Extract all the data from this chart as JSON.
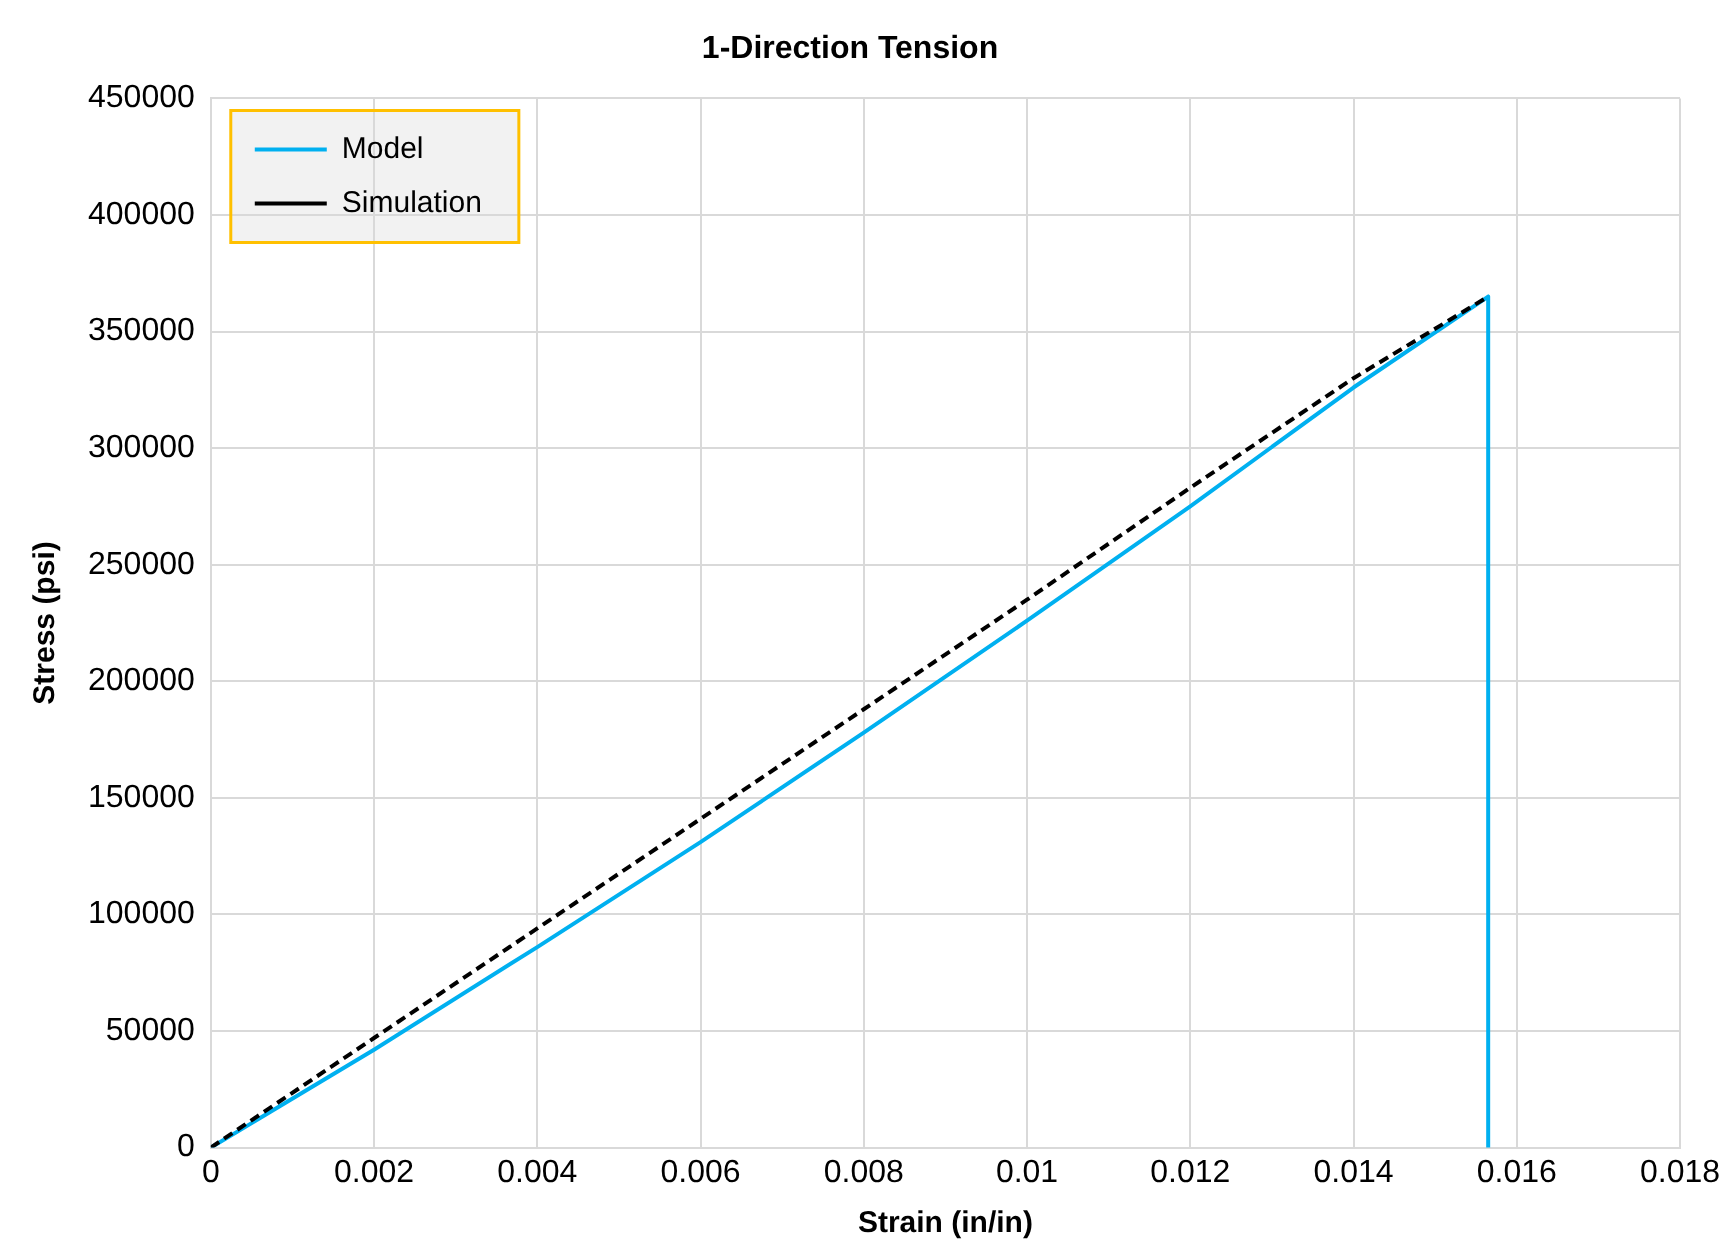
{
  "chart_data": {
    "type": "line",
    "title": "1-Direction Tension",
    "xlabel": "Strain (in/in)",
    "ylabel": "Stress (psi)",
    "xlim": [
      0,
      0.018
    ],
    "xticks": [
      0,
      0.002,
      0.004,
      0.006,
      0.008,
      0.01,
      0.012,
      0.014,
      0.016,
      0.018
    ],
    "ylim": [
      0,
      450000
    ],
    "yticks": [
      0,
      50000,
      100000,
      150000,
      200000,
      250000,
      300000,
      350000,
      400000,
      450000
    ],
    "grid": true,
    "legend": "top left",
    "marker": "none",
    "series": [
      {
        "name": "Model",
        "color": "#00b0f0",
        "line_style": "solid",
        "x": [
          0,
          0.002,
          0.004,
          0.006,
          0.008,
          0.01,
          0.012,
          0.014,
          0.01565,
          0.01565
        ],
        "values": [
          0,
          42000,
          86000,
          131000,
          178000,
          226000,
          275000,
          326000,
          365000,
          0
        ]
      },
      {
        "name": "Simulation",
        "color": "#000000",
        "line_style": "dashed",
        "x": [
          0,
          0.002,
          0.004,
          0.006,
          0.008,
          0.01,
          0.012,
          0.014,
          0.01565
        ],
        "values": [
          0,
          47000,
          94000,
          141000,
          188000,
          235000,
          283000,
          330000,
          365000
        ]
      }
    ]
  }
}
